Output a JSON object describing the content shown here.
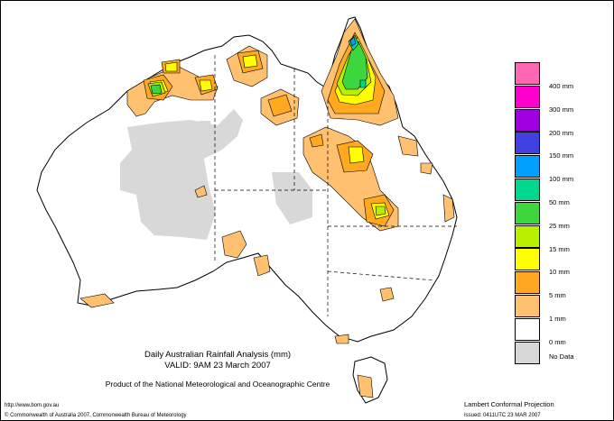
{
  "title": {
    "line1": "Daily Australian Rainfall Analysis (mm)",
    "line2": "VALID: 9AM 23 March 2007",
    "line3": "Product of the National Meteorological and Oceanographic Centre"
  },
  "legend": {
    "items": [
      {
        "label": "400 mm",
        "color": "#ff66b3"
      },
      {
        "label": "300 mm",
        "color": "#ff00cc"
      },
      {
        "label": "200 mm",
        "color": "#a000e0"
      },
      {
        "label": "150 mm",
        "color": "#4040e0"
      },
      {
        "label": "100 mm",
        "color": "#00a0ff"
      },
      {
        "label": "50 mm",
        "color": "#00d890"
      },
      {
        "label": "25 mm",
        "color": "#3dd63d"
      },
      {
        "label": "15 mm",
        "color": "#b8f000"
      },
      {
        "label": "10 mm",
        "color": "#ffff00"
      },
      {
        "label": "5 mm",
        "color": "#ffa820"
      },
      {
        "label": "1 mm",
        "color": "#ffc070"
      },
      {
        "label": "0 mm",
        "color": "#ffffff"
      },
      {
        "label": "No Data",
        "color": "#d8d8d8"
      }
    ]
  },
  "footer": {
    "url": "http://www.bom.gov.au",
    "copyright": "© Commonwealth of Australia 2007, Commonwealth Bureau of Meteorology",
    "projection": "Lambert Conformal Projection",
    "issued": "Issued: 0411UTC 23 MAR 2007"
  }
}
